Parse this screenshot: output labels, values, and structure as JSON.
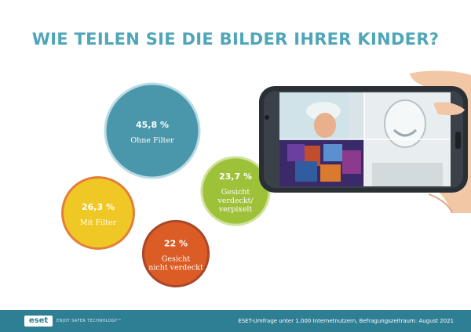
{
  "title": "WIE TEILEN SIE DIE BILDER IHRER KINDER?",
  "chart_data": {
    "type": "bubble",
    "unit": "%",
    "categories": [
      "Ohne Filter",
      "Mit Filter",
      "Gesicht verdeckt/ verpixelt",
      "Gesicht nicht verdeckt"
    ],
    "values": [
      45.8,
      26.3,
      23.7,
      22
    ],
    "bubbles": [
      {
        "value_label": "45,8 %",
        "label_lines": [
          "Ohne Filter"
        ],
        "value": 45.8,
        "fill": "#4a97ab",
        "stroke": "#b9dbe4"
      },
      {
        "value_label": "26,3 %",
        "label_lines": [
          "Mit Filter"
        ],
        "value": 26.3,
        "fill": "#efc825",
        "stroke": "#e37f3a"
      },
      {
        "value_label": "23,7 %",
        "label_lines": [
          "Gesicht",
          "verdeckt/",
          "verpixelt"
        ],
        "value": 23.7,
        "fill": "#9ec13a",
        "stroke": "#cfe29e"
      },
      {
        "value_label": "22 %",
        "label_lines": [
          "Gesicht",
          "nicht verdeckt"
        ],
        "value": 22,
        "fill": "#db5c25",
        "stroke": "#a9472a"
      }
    ]
  },
  "footer": {
    "logo": "eset",
    "tagline": "ENJOY SAFER TECHNOLOGY™",
    "source": "ESET-Umfrage unter 1.000 Internetnutzern, Befragungszeitraum: August 2021"
  },
  "colors": {
    "title": "#4fa6b8",
    "footer_bg": "#2f7f94"
  },
  "icons": {
    "phone_illustration": "smartphone-photo-icon"
  }
}
